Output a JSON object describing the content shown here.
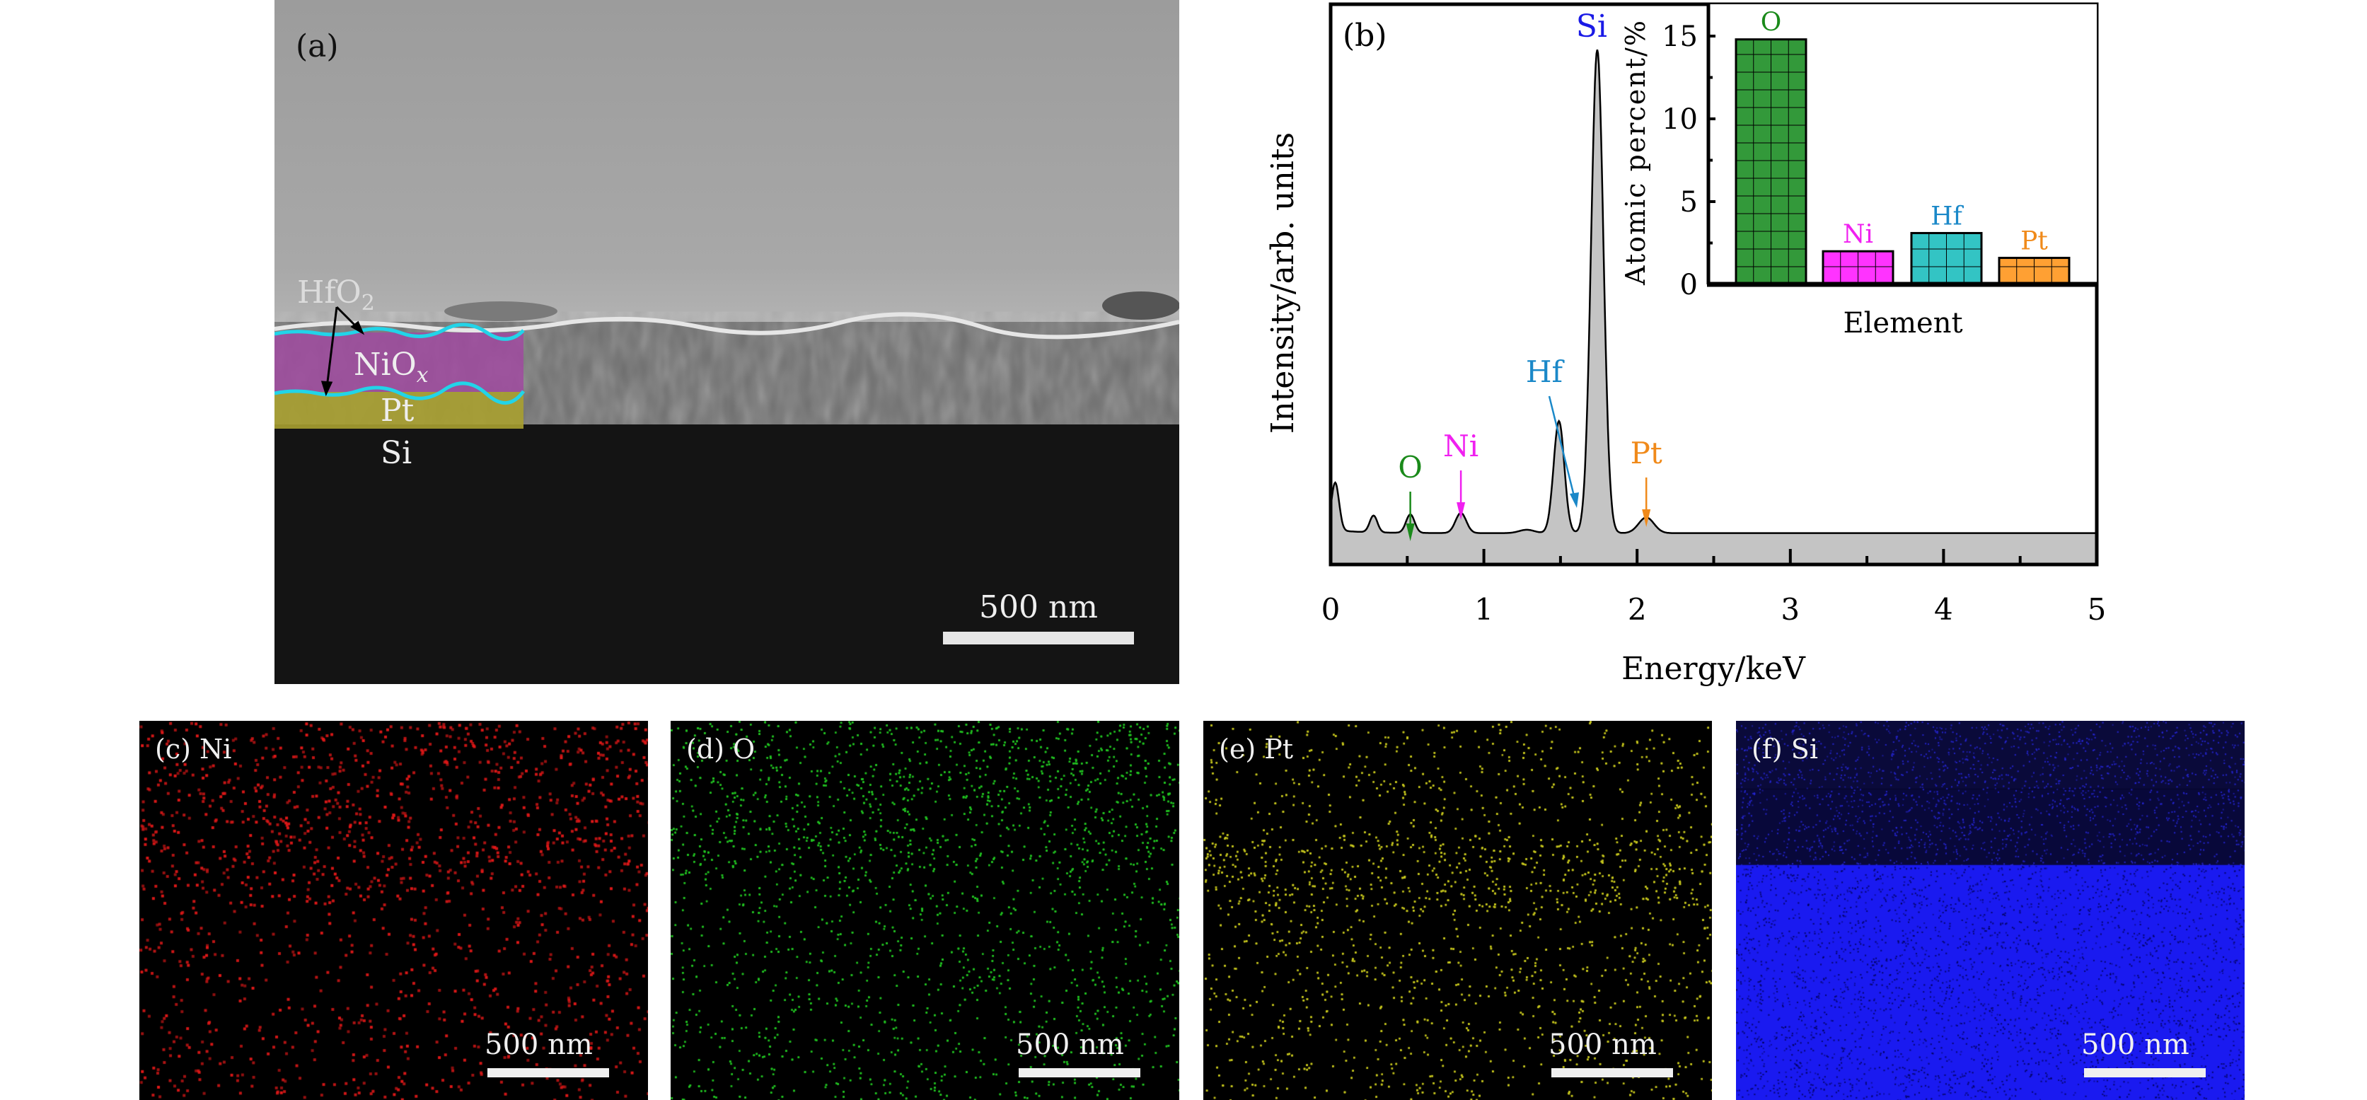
{
  "panel_a": {
    "label": "(a)",
    "layers": [
      "HfO2",
      "NiOx",
      "Pt",
      "Si"
    ],
    "layer_labels": {
      "hfo2_main": "HfO",
      "hfo2_sub": "2",
      "niox_main": "NiO",
      "niox_sub": "x",
      "pt": "Pt",
      "si": "Si"
    },
    "scale_bar": "500 nm",
    "colors": {
      "niox": "#a04aa0",
      "pt": "#a8a030",
      "interface": "#22d4e8"
    }
  },
  "chart_data": [
    {
      "type": "line",
      "panel_label": "(b)",
      "title": "",
      "xlabel": "Energy/keV",
      "ylabel": "Intensity/arb. units",
      "xlim": [
        0,
        5
      ],
      "ylim": [
        0,
        100
      ],
      "xticks": [
        "0",
        "1",
        "2",
        "3",
        "4",
        "5"
      ],
      "baseline": 5.6,
      "peaks": [
        {
          "x": 0.03,
          "height": 8.5,
          "width": 0.025
        },
        {
          "x": 0.28,
          "height": 3.0,
          "width": 0.025
        },
        {
          "x": 0.52,
          "height": 3.3,
          "width": 0.028
        },
        {
          "x": 0.85,
          "height": 3.6,
          "width": 0.035
        },
        {
          "x": 1.28,
          "height": 0.6,
          "width": 0.05
        },
        {
          "x": 1.49,
          "height": 20.0,
          "width": 0.035
        },
        {
          "x": 1.74,
          "height": 86.3,
          "width": 0.04
        },
        {
          "x": 2.06,
          "height": 2.8,
          "width": 0.05
        }
      ],
      "annotations": [
        {
          "text": "Si",
          "x": 1.74,
          "color": "#1a1ae6"
        },
        {
          "text": "Hf",
          "x": 1.65,
          "color": "#1a88c8"
        },
        {
          "text": "O",
          "x": 0.52,
          "color": "#1a8a1a"
        },
        {
          "text": "Ni",
          "x": 0.85,
          "color": "#f020f0"
        },
        {
          "text": "Pt",
          "x": 2.06,
          "color": "#f08a1a"
        }
      ],
      "fill_color": "#c4c4c4"
    },
    {
      "type": "bar",
      "inset": true,
      "categories": [
        "O",
        "Ni",
        "Hf",
        "Pt"
      ],
      "values": [
        14.8,
        2.0,
        3.1,
        1.6
      ],
      "colors": [
        "#33993a",
        "#ff33ff",
        "#33c4c4",
        "#ffa033"
      ],
      "label_colors": [
        "#1a8a1a",
        "#f020f0",
        "#1a88c8",
        "#f08a1a"
      ],
      "xlabel": "Element",
      "ylabel": "Atomic percent/%",
      "ylim": [
        0,
        16
      ],
      "yticks": [
        "0",
        "5",
        "10",
        "15"
      ]
    }
  ],
  "maps": [
    {
      "label": "(c) Ni",
      "scale_bar": "500 nm",
      "color": "#e01818"
    },
    {
      "label": "(d) O",
      "scale_bar": "500 nm",
      "color": "#22c422"
    },
    {
      "label": "(e) Pt",
      "scale_bar": "500 nm",
      "color": "#c8c81e"
    },
    {
      "label": "(f) Si",
      "scale_bar": "500 nm",
      "color": "#1a1aff"
    }
  ]
}
